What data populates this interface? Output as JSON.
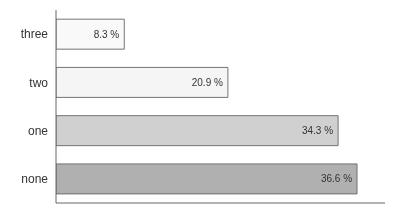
{
  "chart_data": {
    "type": "bar",
    "orientation": "horizontal",
    "categories": [
      "none",
      "one",
      "two",
      "three"
    ],
    "values": [
      36.6,
      34.3,
      20.9,
      8.3
    ],
    "value_labels": [
      "36.6 %",
      "34.3 %",
      "20.9 %",
      "8.3 %"
    ],
    "data_labels": true,
    "colors": [
      "#b0b0b0",
      "#d0d0d0",
      "#f5f5f5",
      "#f9f9f9"
    ],
    "xlim": [
      0,
      40
    ],
    "xticks": [],
    "grid": false,
    "tick_labels": "y"
  }
}
